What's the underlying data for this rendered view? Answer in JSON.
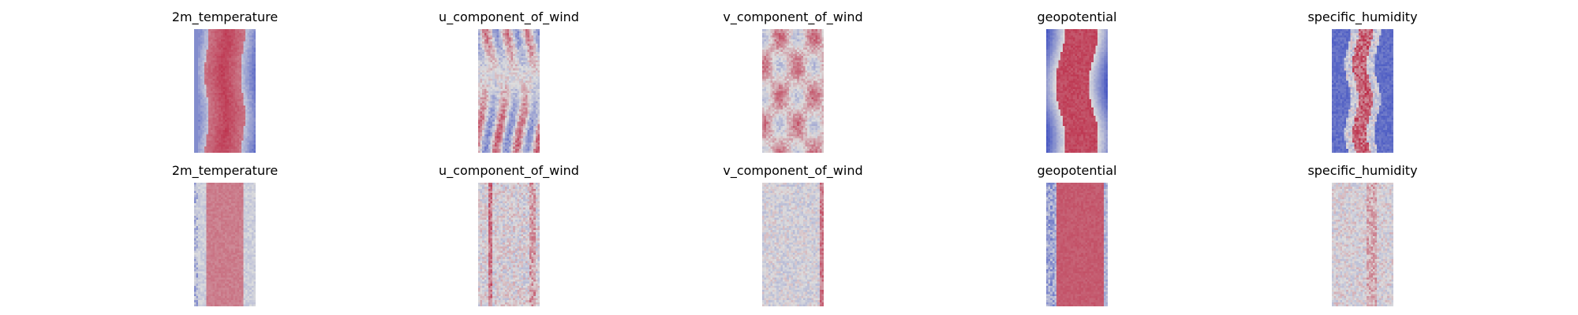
{
  "chart_data": {
    "type": "heatmap",
    "layout": {
      "rows": 2,
      "columns": 5
    },
    "colormap": "coolwarm",
    "colormap_endpoints": {
      "low": "#3b4cc0",
      "mid": "#dddddd",
      "high": "#b40426"
    },
    "axes_visible": false,
    "colorbar": false,
    "panels": [
      {
        "title": "2m_temperature",
        "row": 0,
        "col": 0,
        "pattern": "band",
        "seed": 11
      },
      {
        "title": "u_component_of_wind",
        "row": 0,
        "col": 1,
        "pattern": "streaks",
        "seed": 23
      },
      {
        "title": "v_component_of_wind",
        "row": 0,
        "col": 2,
        "pattern": "blobs",
        "seed": 37
      },
      {
        "title": "geopotential",
        "row": 0,
        "col": 3,
        "pattern": "band-wavy",
        "seed": 41
      },
      {
        "title": "specific_humidity",
        "row": 0,
        "col": 4,
        "pattern": "humid",
        "seed": 53
      },
      {
        "title": "2m_temperature",
        "row": 1,
        "col": 0,
        "pattern": "band-soft",
        "seed": 61
      },
      {
        "title": "u_component_of_wind",
        "row": 1,
        "col": 1,
        "pattern": "noise-cols",
        "seed": 71
      },
      {
        "title": "v_component_of_wind",
        "row": 1,
        "col": 2,
        "pattern": "noise-faint",
        "seed": 83
      },
      {
        "title": "geopotential",
        "row": 1,
        "col": 3,
        "pattern": "band-blocky",
        "seed": 97
      },
      {
        "title": "specific_humidity",
        "row": 1,
        "col": 4,
        "pattern": "noise-mid",
        "seed": 101
      }
    ]
  }
}
